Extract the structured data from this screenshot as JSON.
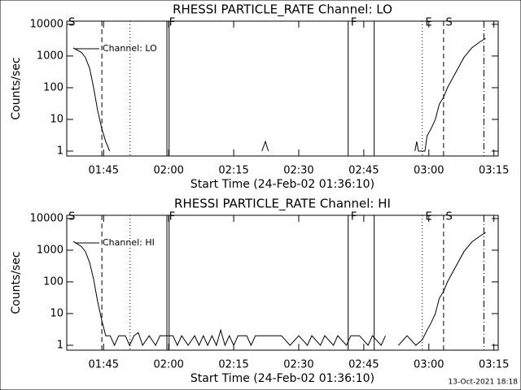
{
  "chart_data": [
    {
      "type": "line",
      "title": "RHESSI PARTICLE_RATE Channel: LO",
      "xlabel": "Start Time (24-Feb-02 01:36:10)",
      "ylabel": "Counts/sec",
      "x": [
        98.0,
        99.9,
        100.8,
        101.8,
        102.7,
        103.6,
        104.6,
        105.5,
        106.4,
        107.0,
        141.5,
        142.3,
        143.0,
        150.0,
        176.8,
        177.2,
        177.6,
        179.1,
        179.6,
        180.5,
        181.5,
        182.4,
        183.4,
        184.3,
        186.2,
        188.1,
        189.9,
        191.8,
        193.1
      ],
      "series": [
        {
          "name": "Channel: LO",
          "color": "#000000",
          "values": [
            1800,
            1300,
            900,
            400,
            100,
            20,
            5,
            2,
            1,
            null,
            1,
            2,
            1,
            null,
            1,
            2,
            1,
            1,
            3,
            5,
            10,
            30,
            50,
            100,
            300,
            900,
            1800,
            2800,
            3600
          ]
        }
      ],
      "xlim": [
        96.5,
        196
      ],
      "xticks": [
        {
          "value": 105,
          "label": "01:45"
        },
        {
          "value": 120,
          "label": "02:00"
        },
        {
          "value": 135,
          "label": "02:15"
        },
        {
          "value": 150,
          "label": "02:30"
        },
        {
          "value": 165,
          "label": "02:45"
        },
        {
          "value": 180,
          "label": "03:00"
        },
        {
          "value": 195,
          "label": "03:15"
        }
      ],
      "ylim": [
        0.7,
        12600
      ],
      "yticks": [
        1,
        10,
        100,
        1000,
        10000
      ],
      "log_y": true,
      "markers": [
        {
          "x": 104.6,
          "style": "dashed"
        },
        {
          "x": 111.1,
          "style": "dotted"
        },
        {
          "x": 119.6,
          "style": "solid"
        },
        {
          "x": 120.1,
          "style": "solid"
        },
        {
          "x": 161.4,
          "style": "solid"
        },
        {
          "x": 167.4,
          "style": "solid"
        },
        {
          "x": 178.5,
          "style": "dotted"
        },
        {
          "x": 183.4,
          "style": "dashed"
        },
        {
          "x": 192.7,
          "style": "dashdot"
        }
      ],
      "marker_labels": [
        {
          "text": "S",
          "x": 96.9
        },
        {
          "text": "F",
          "x": 120.1
        },
        {
          "text": "F",
          "x": 162.0
        },
        {
          "text": "E",
          "x": 179.2
        },
        {
          "text": "S",
          "x": 183.9
        }
      ]
    },
    {
      "type": "line",
      "title": "RHESSI PARTICLE_RATE Channel: HI",
      "xlabel": "Start Time (24-Feb-02 01:36:10)",
      "ylabel": "Counts/sec",
      "x": [
        98.0,
        99.9,
        100.8,
        101.8,
        102.7,
        103.6,
        104.6,
        105.5,
        106.5,
        107.5,
        108.5,
        110,
        111,
        112,
        113,
        114,
        115.5,
        117,
        118,
        119,
        121,
        122,
        123,
        124.5,
        126,
        127,
        128,
        129,
        130,
        131,
        132,
        133,
        134,
        135,
        136,
        138,
        139,
        140,
        142,
        144,
        146,
        148,
        150,
        152,
        153,
        155,
        156,
        158,
        159,
        161,
        162,
        164,
        166,
        167,
        169,
        170,
        171,
        173,
        175,
        177,
        178.5,
        179.6,
        180.5,
        181.5,
        182.4,
        183.4,
        184.3,
        186.2,
        188.1,
        189.9,
        191.8,
        193.1
      ],
      "series": [
        {
          "name": "Channel: HI",
          "color": "#000000",
          "values": [
            1900,
            1300,
            900,
            400,
            120,
            25,
            6,
            2,
            2,
            1,
            2,
            2,
            1,
            2,
            2.5,
            1,
            2,
            1,
            2,
            2,
            2,
            1,
            2,
            1,
            2,
            1,
            2,
            1,
            2,
            1,
            3,
            1,
            2,
            1,
            2,
            2,
            1,
            2,
            2,
            2,
            2,
            1,
            2,
            1,
            2,
            1,
            2,
            1,
            2,
            1,
            2,
            2,
            1,
            2,
            1,
            2,
            null,
            1,
            2,
            1,
            1.5,
            3,
            5,
            10,
            30,
            50,
            100,
            300,
            900,
            1800,
            2800,
            3600
          ]
        }
      ],
      "xlim": [
        96.5,
        196
      ],
      "xticks": [
        {
          "value": 105,
          "label": "01:45"
        },
        {
          "value": 120,
          "label": "02:00"
        },
        {
          "value": 135,
          "label": "02:15"
        },
        {
          "value": 150,
          "label": "02:30"
        },
        {
          "value": 165,
          "label": "02:45"
        },
        {
          "value": 180,
          "label": "03:00"
        },
        {
          "value": 195,
          "label": "03:15"
        }
      ],
      "ylim": [
        0.7,
        12600
      ],
      "yticks": [
        1,
        10,
        100,
        1000,
        10000
      ],
      "log_y": true,
      "markers": [
        {
          "x": 104.6,
          "style": "dashed"
        },
        {
          "x": 111.1,
          "style": "dotted"
        },
        {
          "x": 119.6,
          "style": "solid"
        },
        {
          "x": 120.1,
          "style": "solid"
        },
        {
          "x": 161.4,
          "style": "solid"
        },
        {
          "x": 167.4,
          "style": "solid"
        },
        {
          "x": 178.5,
          "style": "dotted"
        },
        {
          "x": 183.4,
          "style": "dashed"
        },
        {
          "x": 192.7,
          "style": "dashdot"
        }
      ],
      "marker_labels": [
        {
          "text": "S",
          "x": 96.9
        },
        {
          "text": "F",
          "x": 120.1
        },
        {
          "text": "F",
          "x": 162.0
        },
        {
          "text": "E",
          "x": 179.2
        },
        {
          "text": "S",
          "x": 183.9
        }
      ]
    }
  ],
  "footer": "13-Oct-2021 18:18"
}
